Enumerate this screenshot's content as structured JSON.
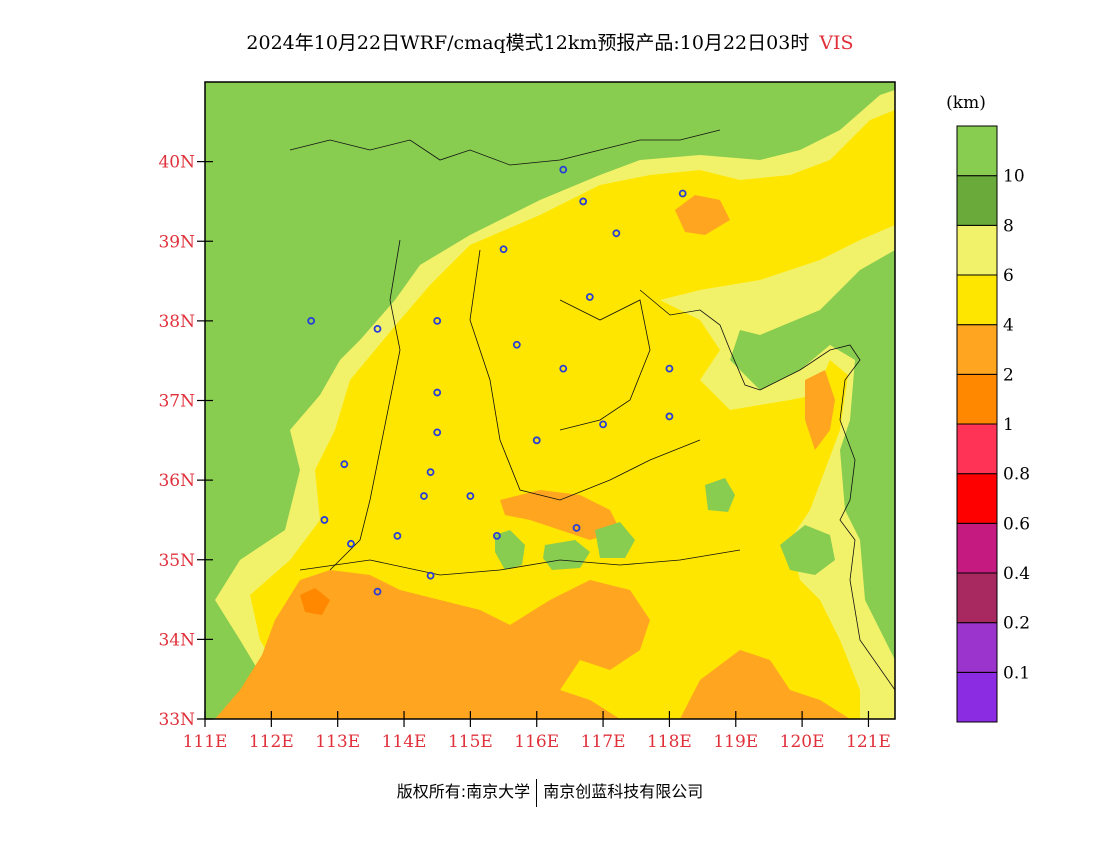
{
  "title": {
    "text": "2024年10月22日WRF/cmaq模式12km预报产品:10月22日03时",
    "variable": "VIS"
  },
  "footer": {
    "left": "版权所有:南京大学",
    "right": "南京创蓝科技有限公司"
  },
  "map": {
    "lon_range": [
      111,
      121.4
    ],
    "lat_range": [
      33,
      41
    ],
    "lon_labels": [
      "111E",
      "112E",
      "113E",
      "114E",
      "115E",
      "116E",
      "117E",
      "118E",
      "119E",
      "120E",
      "121E"
    ],
    "lat_labels": [
      "33N",
      "34N",
      "35N",
      "36N",
      "37N",
      "38N",
      "39N",
      "40N"
    ],
    "stations": [
      [
        116.4,
        39.9
      ],
      [
        116.7,
        39.5
      ],
      [
        117.2,
        39.1
      ],
      [
        118.2,
        39.6
      ],
      [
        115.5,
        38.9
      ],
      [
        116.8,
        38.3
      ],
      [
        114.5,
        38.0
      ],
      [
        112.6,
        38.0
      ],
      [
        113.6,
        37.9
      ],
      [
        115.7,
        37.7
      ],
      [
        116.4,
        37.4
      ],
      [
        118.0,
        37.4
      ],
      [
        114.5,
        37.1
      ],
      [
        118.0,
        36.8
      ],
      [
        117.0,
        36.7
      ],
      [
        114.5,
        36.6
      ],
      [
        116.0,
        36.5
      ],
      [
        113.1,
        36.2
      ],
      [
        114.4,
        36.1
      ],
      [
        114.3,
        35.8
      ],
      [
        115.0,
        35.8
      ],
      [
        112.8,
        35.5
      ],
      [
        113.2,
        35.2
      ],
      [
        113.9,
        35.3
      ],
      [
        115.4,
        35.3
      ],
      [
        116.6,
        35.4
      ],
      [
        114.4,
        34.8
      ],
      [
        113.6,
        34.6
      ]
    ]
  },
  "colorbar": {
    "unit": "(km)",
    "colors": [
      "#8b2be2",
      "#9b34cc",
      "#a8295f",
      "#c51a80",
      "#ff0000",
      "#ff3355",
      "#ff8800",
      "#ffa51f",
      "#ffe600",
      "#f2f26a",
      "#6aaa3a",
      "#88cc50"
    ],
    "tick_labels": [
      "0.1",
      "0.2",
      "0.4",
      "0.6",
      "0.8",
      "1",
      "2",
      "4",
      "6",
      "8",
      "10"
    ]
  }
}
